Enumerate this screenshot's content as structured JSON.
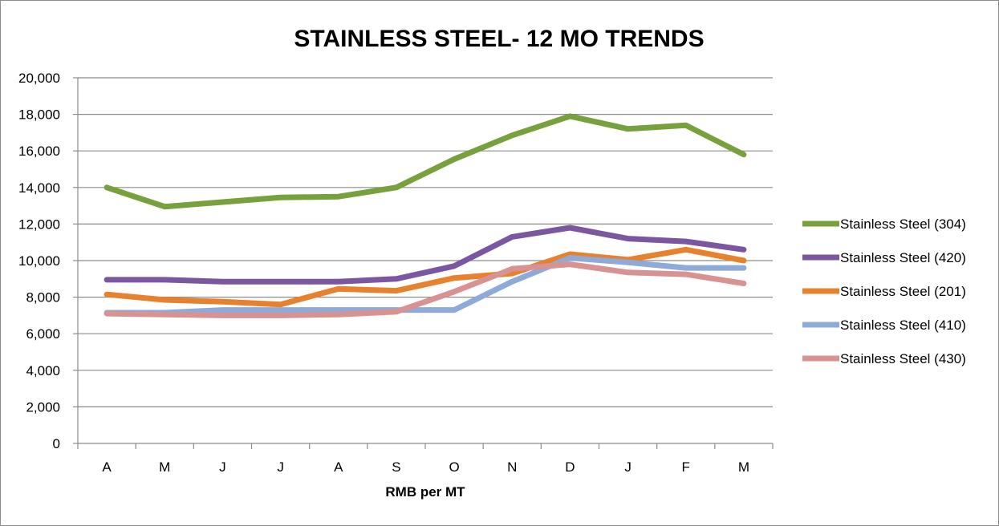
{
  "chart_data": {
    "type": "line",
    "title": "STAINLESS STEEL- 12 MO TRENDS",
    "xlabel": "RMB per MT",
    "ylabel": "",
    "ylim": [
      0,
      20000
    ],
    "yticks": [
      "0",
      "2,000",
      "4,000",
      "6,000",
      "8,000",
      "10,000",
      "12,000",
      "14,000",
      "16,000",
      "18,000",
      "20,000"
    ],
    "categories": [
      "A",
      "M",
      "J",
      "J",
      "A",
      "S",
      "O",
      "N",
      "D",
      "J",
      "F",
      "M"
    ],
    "grid": true,
    "legend_position": "right",
    "series": [
      {
        "name": "Stainless Steel (304)",
        "color": "#77a13c",
        "values": [
          14000,
          12950,
          13200,
          13450,
          13500,
          14000,
          15550,
          16850,
          17900,
          17200,
          17400,
          15800
        ]
      },
      {
        "name": "Stainless Steel (420)",
        "color": "#7a57a0",
        "values": [
          8950,
          8950,
          8850,
          8850,
          8850,
          9000,
          9700,
          11300,
          11800,
          11200,
          11050,
          10600
        ]
      },
      {
        "name": "Stainless Steel (201)",
        "color": "#e8812e",
        "values": [
          8150,
          7850,
          7750,
          7600,
          8450,
          8350,
          9050,
          9300,
          10350,
          10050,
          10600,
          10000
        ]
      },
      {
        "name": "Stainless Steel (410)",
        "color": "#8eaad9",
        "values": [
          7150,
          7150,
          7300,
          7300,
          7300,
          7300,
          7300,
          8850,
          10150,
          9900,
          9600,
          9600
        ]
      },
      {
        "name": "Stainless Steel (430)",
        "color": "#d89292",
        "values": [
          7100,
          7050,
          7000,
          7000,
          7050,
          7200,
          8300,
          9550,
          9800,
          9350,
          9250,
          8750
        ]
      }
    ]
  }
}
